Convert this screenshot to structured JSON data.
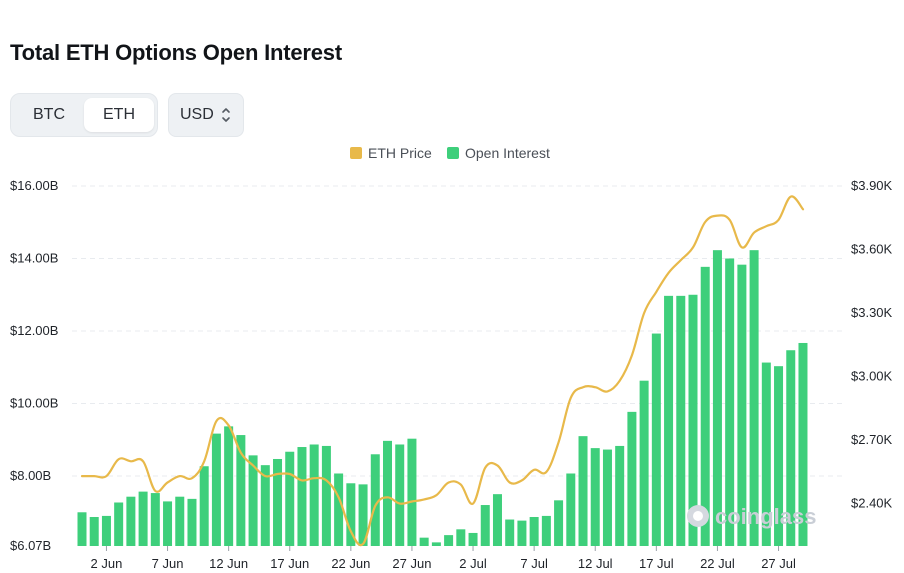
{
  "header": {
    "title": "Total ETH Options Open Interest"
  },
  "asset_toggle": {
    "options": [
      "BTC",
      "ETH"
    ],
    "selected": "ETH"
  },
  "currency_select": {
    "value": "USD"
  },
  "legend": {
    "price_label": "ETH Price",
    "oi_label": "Open Interest"
  },
  "watermark": {
    "text": "coinglass"
  },
  "colors": {
    "price": "#e8b94a",
    "oi": "#3ecf7b",
    "grid": "#e8ebef",
    "text": "#1f2329"
  },
  "chart_data": {
    "type": "bar",
    "x_tick_labels": [
      "2 Jun",
      "7 Jun",
      "12 Jun",
      "17 Jun",
      "22 Jun",
      "27 Jun",
      "2 Jul",
      "7 Jul",
      "12 Jul",
      "17 Jul",
      "22 Jul",
      "27 Jul"
    ],
    "y_left": {
      "ticks": [
        "$6.07B",
        "$8.00B",
        "$10.00B",
        "$12.00B",
        "$14.00B",
        "$16.00B"
      ],
      "range_billion": [
        6.07,
        16.0
      ]
    },
    "y_right": {
      "ticks": [
        "$2.40K",
        "$2.70K",
        "$3.00K",
        "$3.30K",
        "$3.60K",
        "$3.90K"
      ],
      "range_thousand": [
        2.2,
        3.9
      ]
    },
    "grid": true,
    "legend_placement": "top-center",
    "series": [
      {
        "name": "Open Interest",
        "kind": "bar",
        "unit": "billion USD",
        "values": [
          7.0,
          6.87,
          6.9,
          7.27,
          7.43,
          7.57,
          7.53,
          7.3,
          7.43,
          7.37,
          8.27,
          9.17,
          9.37,
          9.13,
          8.57,
          8.3,
          8.47,
          8.67,
          8.8,
          8.87,
          8.83,
          8.07,
          7.8,
          7.77,
          8.6,
          8.97,
          8.87,
          9.03,
          6.3,
          6.17,
          6.37,
          6.53,
          6.43,
          7.2,
          7.5,
          6.8,
          6.77,
          6.87,
          6.9,
          7.33,
          8.07,
          9.1,
          8.77,
          8.73,
          8.83,
          9.77,
          10.63,
          11.93,
          12.97,
          12.97,
          13.0,
          13.77,
          14.23,
          14.0,
          13.83,
          14.23,
          11.13,
          11.03,
          11.47,
          11.67
        ]
      },
      {
        "name": "ETH Price",
        "kind": "line",
        "unit": "thousand USD",
        "values": [
          2.53,
          2.53,
          2.53,
          2.61,
          2.6,
          2.6,
          2.46,
          2.5,
          2.53,
          2.52,
          2.6,
          2.79,
          2.77,
          2.64,
          2.58,
          2.53,
          2.54,
          2.54,
          2.51,
          2.52,
          2.51,
          2.43,
          2.27,
          2.21,
          2.39,
          2.43,
          2.4,
          2.41,
          2.42,
          2.44,
          2.5,
          2.49,
          2.4,
          2.57,
          2.58,
          2.5,
          2.51,
          2.56,
          2.55,
          2.69,
          2.9,
          2.95,
          2.95,
          2.93,
          2.98,
          3.1,
          3.3,
          3.4,
          3.49,
          3.55,
          3.61,
          3.73,
          3.76,
          3.74,
          3.61,
          3.68,
          3.71,
          3.74,
          3.85,
          3.79
        ]
      }
    ]
  }
}
